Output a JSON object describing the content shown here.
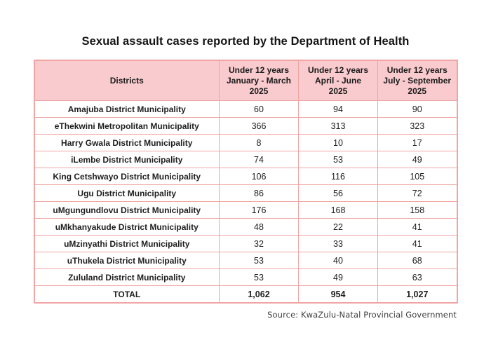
{
  "page": {
    "title": "Sexual assault cases reported by the Department of Health",
    "source": "Source: KwaZulu-Natal Provincial Government"
  },
  "colors": {
    "header_background": "#f9cbce",
    "table_border": "#efa5a3",
    "row_background": "#ffffff",
    "text": "#1a1a1a",
    "source_text": "#3d3d3d"
  },
  "chart_data": {
    "type": "table",
    "title": "Sexual assault cases reported by the Department of Health",
    "columns": [
      "Districts",
      "Under 12 years\nJanuary - March\n2025",
      "Under 12 years\nApril - June\n2025",
      "Under 12 years\nJuly - September\n2025"
    ],
    "rows": [
      {
        "district": "Amajuba District Municipality",
        "values": [
          60,
          94,
          90
        ]
      },
      {
        "district": "eThekwini Metropolitan Municipality",
        "values": [
          366,
          313,
          323
        ]
      },
      {
        "district": "Harry Gwala District Municipality",
        "values": [
          8,
          10,
          17
        ]
      },
      {
        "district": "iLembe District Municipality",
        "values": [
          74,
          53,
          49
        ]
      },
      {
        "district": "King Cetshwayo District Municipality",
        "values": [
          106,
          116,
          105
        ]
      },
      {
        "district": "Ugu District Municipality",
        "values": [
          86,
          56,
          72
        ]
      },
      {
        "district": "uMgungundlovu District Municipality",
        "values": [
          176,
          168,
          158
        ]
      },
      {
        "district": "uMkhanyakude District Municipality",
        "values": [
          48,
          22,
          41
        ]
      },
      {
        "district": "uMzinyathi District Municipality",
        "values": [
          32,
          33,
          41
        ]
      },
      {
        "district": "uThukela District Municipality",
        "values": [
          53,
          40,
          68
        ]
      },
      {
        "district": "Zululand District Municipality",
        "values": [
          53,
          49,
          63
        ]
      }
    ],
    "total": {
      "label": "TOTAL",
      "values": [
        "1,062",
        "954",
        "1,027"
      ]
    },
    "source": "Source: KwaZulu-Natal Provincial Government",
    "legend": false,
    "grid": true
  }
}
